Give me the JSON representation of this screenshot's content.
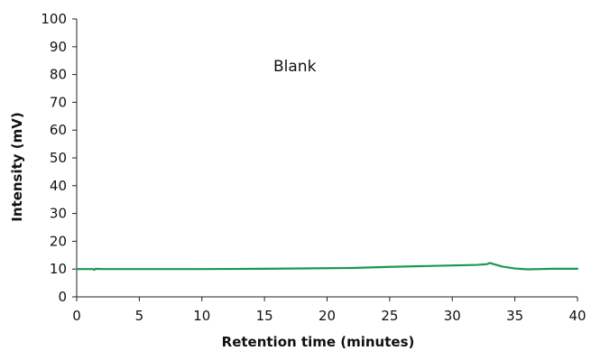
{
  "chart_data": {
    "type": "line",
    "annotation": "Blank",
    "xlabel": "Retention time (minutes)",
    "ylabel": "Intensity (mV)",
    "xlim": [
      0,
      40
    ],
    "ylim": [
      0,
      100
    ],
    "xticks": [
      0,
      5,
      10,
      15,
      20,
      25,
      30,
      35,
      40
    ],
    "yticks": [
      0,
      10,
      20,
      30,
      40,
      50,
      60,
      70,
      80,
      90,
      100
    ],
    "grid": false,
    "legend": "none",
    "series": [
      {
        "color": "#1a9850",
        "x": [
          0,
          1.3,
          1.4,
          1.5,
          2,
          5,
          10,
          15,
          20,
          22,
          25,
          28,
          30,
          32,
          32.8,
          33,
          33.3,
          34,
          35,
          36,
          37,
          38,
          39,
          40
        ],
        "y": [
          10,
          10,
          9.7,
          10.1,
          10,
          10,
          10,
          10.1,
          10.3,
          10.4,
          10.8,
          11.1,
          11.3,
          11.5,
          11.8,
          12.2,
          11.8,
          10.9,
          10.2,
          9.9,
          10,
          10.1,
          10.1,
          10.1
        ]
      }
    ]
  }
}
